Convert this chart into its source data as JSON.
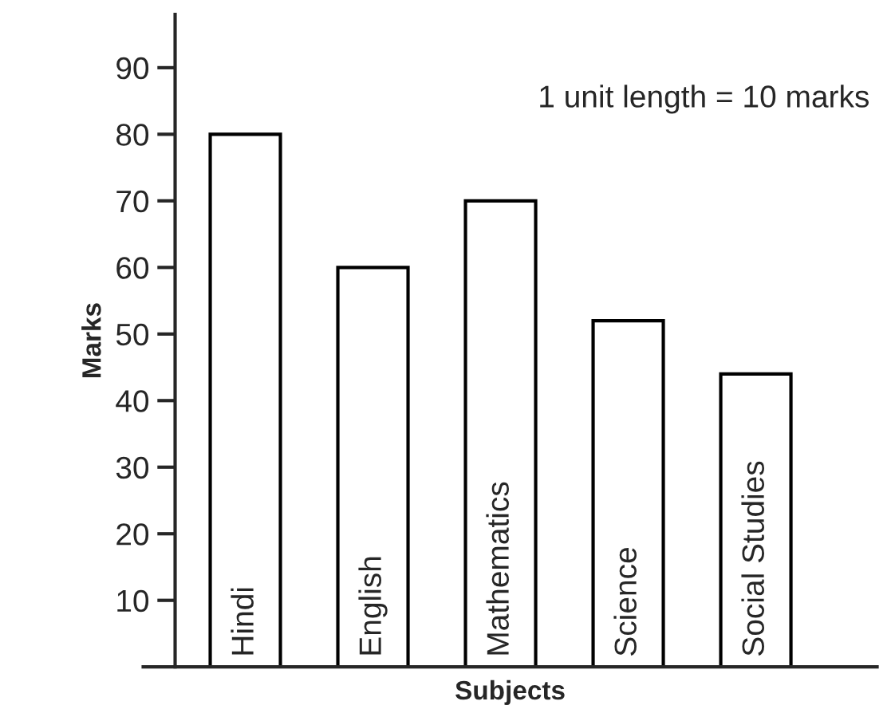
{
  "chart_data": {
    "type": "bar",
    "xlabel": "Subjects",
    "ylabel": "Marks",
    "categories": [
      "Hindi",
      "English",
      "Mathematics",
      "Science",
      "Social Studies"
    ],
    "values": [
      80,
      60,
      70,
      52,
      44
    ],
    "color": "#ffffff",
    "ylim": [
      0,
      98
    ],
    "yticks": [
      10,
      20,
      30,
      40,
      50,
      60,
      70,
      80,
      90
    ],
    "annotations": [
      "1 unit length = 10 marks"
    ],
    "grid": false,
    "legend": false
  }
}
